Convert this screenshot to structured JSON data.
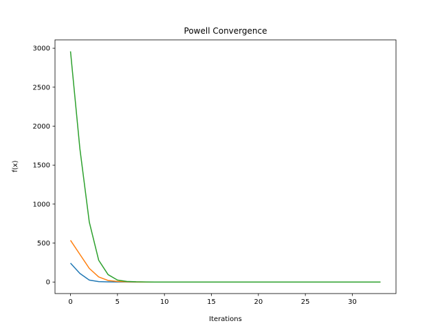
{
  "chart_data": {
    "type": "line",
    "title": "Powell Convergence",
    "xlabel": "Iterations",
    "ylabel": "f(x)",
    "xlim": [
      -1.65,
      34.65
    ],
    "ylim": [
      -148,
      3107
    ],
    "xticks": [
      0,
      5,
      10,
      15,
      20,
      25,
      30
    ],
    "yticks": [
      0,
      500,
      1000,
      1500,
      2000,
      2500,
      3000
    ],
    "grid": false,
    "x": [
      0,
      1,
      2,
      3,
      4,
      5,
      6,
      7,
      8,
      9,
      10,
      11,
      12,
      13,
      14,
      15,
      16,
      17,
      18,
      19,
      20,
      21,
      22,
      23,
      24,
      25,
      26,
      27,
      28,
      29,
      30,
      31,
      32,
      33
    ],
    "series": [
      {
        "color": "#1f77b4",
        "values": [
          242,
          110,
          25,
          5,
          2,
          1,
          0.5,
          0,
          0,
          0,
          0,
          0,
          0,
          0,
          0,
          0,
          0,
          0,
          0,
          0,
          0,
          0,
          0,
          0,
          0,
          0,
          0,
          0,
          0,
          0,
          0,
          0,
          0,
          0
        ]
      },
      {
        "color": "#ff7f0e",
        "values": [
          535,
          355,
          175,
          65,
          20,
          8,
          3,
          1,
          0,
          0,
          0,
          0,
          0,
          0,
          0,
          0,
          0,
          0,
          0,
          0,
          0,
          0,
          0,
          0,
          0,
          0,
          0,
          0,
          0,
          0,
          0,
          0,
          0,
          0
        ]
      },
      {
        "color": "#2ca02c",
        "values": [
          2960,
          1710,
          770,
          280,
          95,
          25,
          8,
          3,
          1,
          0,
          0,
          0,
          0,
          0,
          0,
          0,
          0,
          0,
          0,
          0,
          0,
          0,
          0,
          0,
          0,
          0,
          0,
          0,
          0,
          0,
          0,
          0,
          0,
          0
        ]
      }
    ]
  }
}
